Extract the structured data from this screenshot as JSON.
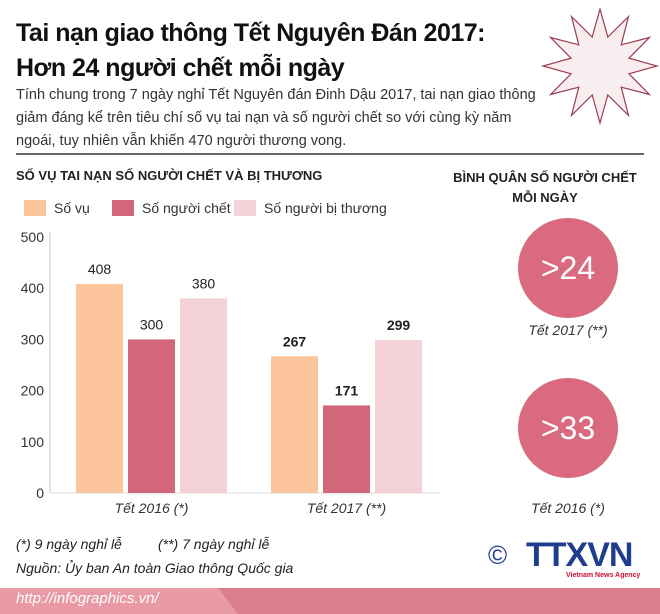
{
  "header": {
    "title_line1": "Tai nạn giao thông Tết Nguyên Đán 2017:",
    "title_line2": "Hơn 24 người chết mỗi ngày",
    "description": "Tính chung trong 7 ngày nghỉ Tết Nguyên đán Đinh Dậu 2017, tai nạn giao thông giảm đáng kể trên tiêu chí số vụ tai nạn và số người chết so với cùng kỳ năm ngoái, tuy nhiên vẫn khiến 470 người thương vong."
  },
  "colors": {
    "so_vu": "#fdc59c",
    "so_nguoi_chet": "#d2677a",
    "so_nguoi_bi_thuong": "#f4d2d8",
    "circle": "#da6b7e",
    "footer": "#dc7f8c",
    "logo": "#1f3d8f"
  },
  "chart_data": [
    {
      "type": "bar",
      "title": "SỐ VỤ TAI NẠN SỐ NGƯỜI CHẾT VÀ BỊ THƯƠNG",
      "categories": [
        "Tết 2016 (*)",
        "Tết 2017 (**)"
      ],
      "series": [
        {
          "name": "Số vụ",
          "values": [
            408,
            267
          ]
        },
        {
          "name": "Số người chết",
          "values": [
            300,
            171
          ]
        },
        {
          "name": "Số người bị thương",
          "values": [
            380,
            299
          ]
        }
      ],
      "yticks": [
        0,
        100,
        200,
        300,
        400,
        500
      ],
      "ylim": [
        0,
        500
      ],
      "grid": false,
      "legend": "top"
    },
    {
      "type": "table",
      "title": "BÌNH QUÂN SỐ NGƯỜI CHẾT MỖI NGÀY",
      "items": [
        {
          "value": ">24",
          "label": "Tết 2017 (**)"
        },
        {
          "value": ">33",
          "label": "Tết 2016 (*)"
        }
      ]
    }
  ],
  "notes": {
    "note1": "(*) 9 ngày nghỉ lễ",
    "note2": "(**) 7 ngày nghỉ lễ",
    "source": "Nguồn: Ủy ban An toàn Giao thông Quốc gia"
  },
  "logo": {
    "text": "TTXVN",
    "sub": "Vietnam News Agency",
    "copyright": "©"
  },
  "footer": {
    "url": "http://infographics.vn/"
  }
}
